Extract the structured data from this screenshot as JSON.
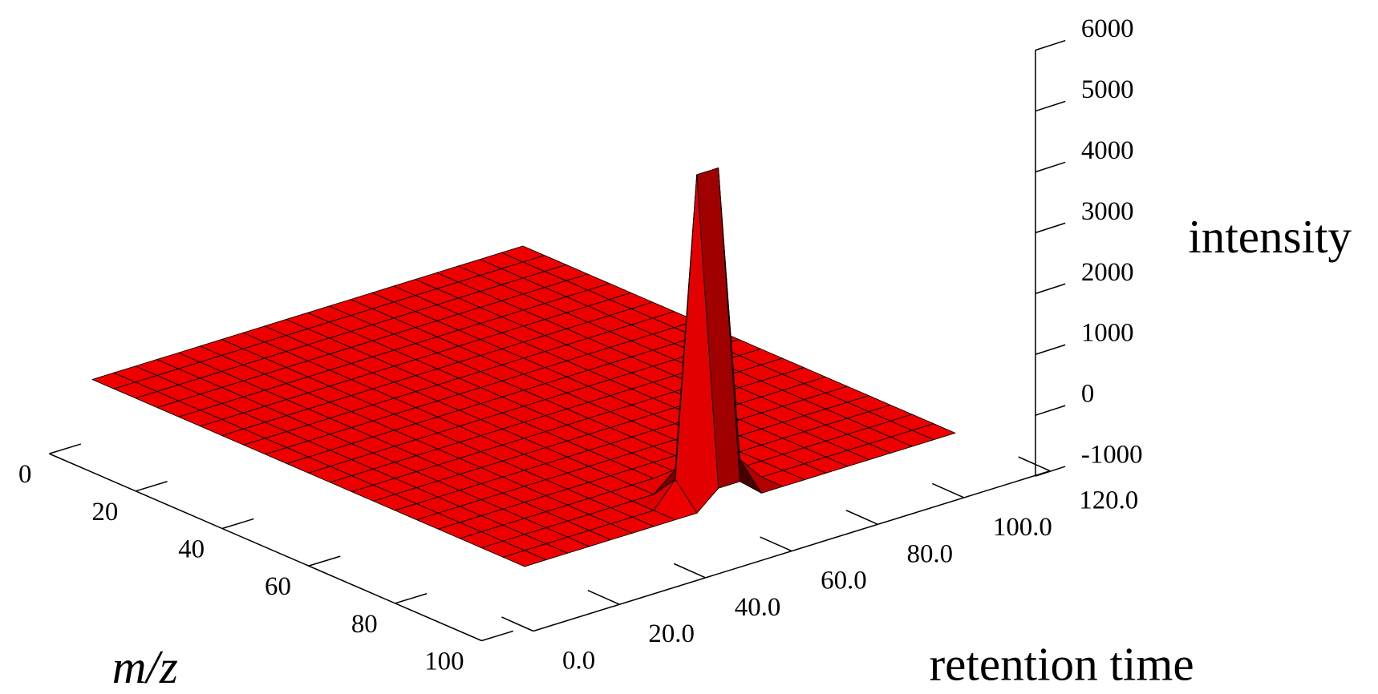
{
  "chart_data": {
    "type": "surface",
    "x_label": "m/z",
    "y_label": "retention time",
    "z_label": "intensity",
    "color": "#ee0000",
    "x": [
      0,
      5,
      10,
      15,
      20,
      25,
      30,
      35,
      40,
      45,
      50,
      55,
      60,
      65,
      70,
      75,
      80,
      85,
      90,
      95,
      100
    ],
    "y": [
      0,
      5,
      10,
      15,
      20,
      25,
      30,
      35,
      40,
      45,
      50,
      55,
      60,
      65,
      70,
      75,
      80,
      85,
      90,
      95,
      100
    ],
    "z": [
      [
        0,
        0,
        0,
        0,
        0,
        0,
        0,
        0,
        0,
        0,
        0,
        0,
        0,
        0,
        0,
        0,
        0,
        0,
        0,
        0,
        0
      ],
      [
        0,
        0,
        0,
        0,
        0,
        0,
        0,
        0,
        0,
        0,
        0,
        0,
        0,
        0,
        0,
        0,
        0,
        0,
        0,
        0,
        0
      ],
      [
        0,
        0,
        0,
        0,
        0,
        0,
        0,
        0,
        0,
        0,
        0,
        0,
        0,
        0,
        0,
        0,
        0,
        0,
        0,
        0,
        0
      ],
      [
        0,
        0,
        0,
        0,
        0,
        0,
        0,
        0,
        0,
        0,
        0,
        0,
        0,
        0,
        0,
        0,
        0,
        0,
        0,
        0,
        0
      ],
      [
        0,
        0,
        0,
        0,
        0,
        0,
        0,
        0,
        0,
        0,
        0,
        0,
        0,
        0,
        0,
        0,
        0,
        0,
        0,
        0,
        0
      ],
      [
        0,
        0,
        0,
        0,
        0,
        0,
        0,
        0,
        0,
        0,
        0,
        0,
        0,
        0,
        0,
        0,
        0,
        0,
        0,
        0,
        0
      ],
      [
        0,
        0,
        0,
        0,
        0,
        0,
        0,
        0,
        0,
        0,
        0,
        0,
        0,
        0,
        0,
        0,
        0,
        0,
        0,
        0,
        0
      ],
      [
        0,
        0,
        0,
        0,
        0,
        0,
        0,
        0,
        0,
        0,
        0,
        0,
        0,
        0,
        0,
        0,
        0,
        0,
        0,
        0,
        0
      ],
      [
        0,
        0,
        0,
        0,
        0,
        0,
        0,
        0,
        0,
        0,
        0,
        0,
        0,
        0,
        0,
        0,
        0,
        0,
        0,
        0,
        0
      ],
      [
        0,
        0,
        0,
        0,
        0,
        0,
        0,
        0,
        0,
        0,
        0,
        0,
        0,
        0,
        0,
        0,
        0,
        0,
        0,
        0,
        0
      ],
      [
        0,
        0,
        0,
        0,
        0,
        0,
        0,
        0,
        0,
        0,
        0,
        0,
        0,
        0,
        0,
        0,
        0,
        0,
        0,
        0,
        0
      ],
      [
        0,
        0,
        0,
        0,
        0,
        0,
        0,
        0,
        0,
        0,
        0,
        0,
        0,
        0,
        0,
        0,
        0,
        0,
        0,
        0,
        0
      ],
      [
        0,
        0,
        0,
        0,
        0,
        0,
        0,
        0,
        0,
        0,
        0,
        0,
        0,
        0,
        0,
        0,
        0,
        0,
        0,
        0,
        0
      ],
      [
        0,
        0,
        0,
        0,
        0,
        0,
        0,
        0,
        0,
        0,
        0,
        0,
        0,
        0,
        0,
        0,
        0,
        0,
        0,
        0,
        0
      ],
      [
        0,
        0,
        0,
        0,
        0,
        0,
        0,
        0,
        0,
        0,
        0,
        0,
        0,
        0,
        0,
        0,
        0,
        0,
        0,
        0,
        0
      ],
      [
        0,
        0,
        0,
        0,
        0,
        0,
        0,
        0,
        0,
        0,
        0,
        0,
        0,
        0,
        0,
        0,
        0,
        0,
        0,
        0,
        0
      ],
      [
        0,
        0,
        0,
        0,
        0,
        0,
        0,
        0,
        0,
        0,
        0,
        0,
        0,
        0,
        0,
        0,
        0,
        0,
        0,
        0,
        0
      ],
      [
        0,
        0,
        0,
        0,
        0,
        0,
        0,
        0,
        0,
        0,
        0,
        0,
        0,
        0,
        0,
        0,
        0,
        0,
        0,
        0,
        0
      ],
      [
        0,
        0,
        0,
        0,
        0,
        0,
        0,
        0,
        0,
        300,
        300,
        0,
        0,
        0,
        0,
        0,
        0,
        0,
        0,
        0,
        0
      ],
      [
        0,
        0,
        0,
        0,
        0,
        0,
        0,
        0,
        400,
        5300,
        5300,
        400,
        0,
        0,
        0,
        0,
        0,
        0,
        0,
        0,
        0
      ],
      [
        0,
        0,
        0,
        0,
        0,
        0,
        0,
        0,
        0,
        300,
        300,
        0,
        0,
        0,
        0,
        0,
        0,
        0,
        0,
        0,
        0
      ]
    ],
    "xlim": [
      0,
      100
    ],
    "xticks": [
      0,
      20,
      40,
      60,
      80,
      100
    ],
    "ylim": [
      0,
      120
    ],
    "yticks": [
      {
        "value": 0,
        "label": "0.0"
      },
      {
        "value": 20,
        "label": "20.0"
      },
      {
        "value": 40,
        "label": "40.0"
      },
      {
        "value": 60,
        "label": "60.0"
      },
      {
        "value": 80,
        "label": "80.0"
      },
      {
        "value": 100,
        "label": "100.0"
      },
      {
        "value": 120,
        "label": "120.0"
      }
    ],
    "zlim": [
      -1000,
      6000
    ],
    "zticks": [
      -1000,
      0,
      1000,
      2000,
      3000,
      4000,
      5000,
      6000
    ]
  }
}
